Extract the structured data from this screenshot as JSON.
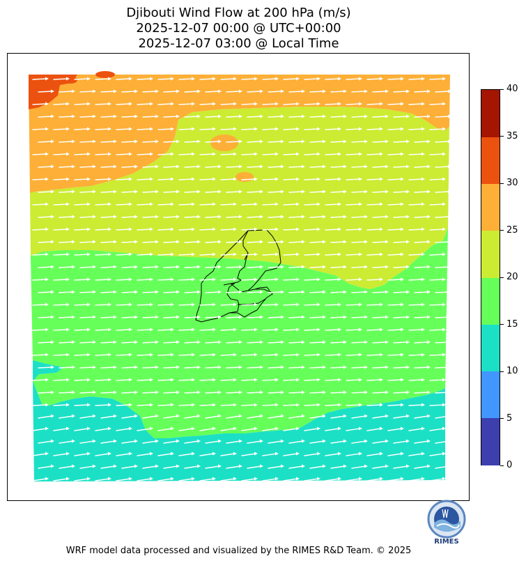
{
  "title": {
    "line1": "Djibouti Wind Flow at 200 hPa (m/s)",
    "line2": "2025-12-07 00:00 @ UTC+00:00",
    "line3": "2025-12-07 03:00 @ Local Time"
  },
  "colorbar": {
    "levels": [
      0,
      5,
      10,
      15,
      20,
      25,
      30,
      35,
      40
    ],
    "tick_labels": [
      "0",
      "5",
      "10",
      "15",
      "20",
      "25",
      "30",
      "35",
      "40"
    ],
    "colors": [
      "#3d3fae",
      "#4196ff",
      "#1ce0c5",
      "#66ff59",
      "#cceb33",
      "#fdaf37",
      "#ec520f",
      "#a41502"
    ]
  },
  "wind": {
    "direction": "westerly",
    "arrow_color": "#ffffff"
  },
  "logo": {
    "text": "RIMES"
  },
  "footer": "WRF model data processed and visualized by the RIMES R&D Team. © 2025"
}
